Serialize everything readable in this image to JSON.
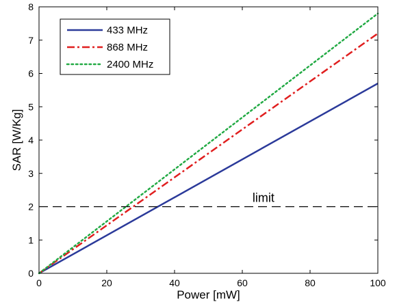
{
  "chart_data": {
    "type": "line",
    "xlabel": "Power [mW]",
    "ylabel": "SAR [W/Kg]",
    "xlim": [
      0,
      100
    ],
    "ylim": [
      0,
      8
    ],
    "xticks": [
      0,
      20,
      40,
      60,
      80,
      100
    ],
    "yticks": [
      0,
      1,
      2,
      3,
      4,
      5,
      6,
      7,
      8
    ],
    "grid": false,
    "legend_position": "top-left",
    "series": [
      {
        "name": "433 MHz",
        "color": "#2b3a9a",
        "style": "solid",
        "x": [
          0,
          100
        ],
        "y": [
          0,
          5.7
        ]
      },
      {
        "name": "868 MHz",
        "color": "#e01e1e",
        "style": "dash-dot",
        "x": [
          0,
          100
        ],
        "y": [
          0,
          7.2
        ]
      },
      {
        "name": "2400 MHz",
        "color": "#22aa44",
        "style": "dotted",
        "x": [
          0,
          100
        ],
        "y": [
          0,
          7.8
        ]
      }
    ],
    "reference_line": {
      "y": 2,
      "color": "#000000",
      "style": "dashed",
      "label": "limit"
    }
  }
}
